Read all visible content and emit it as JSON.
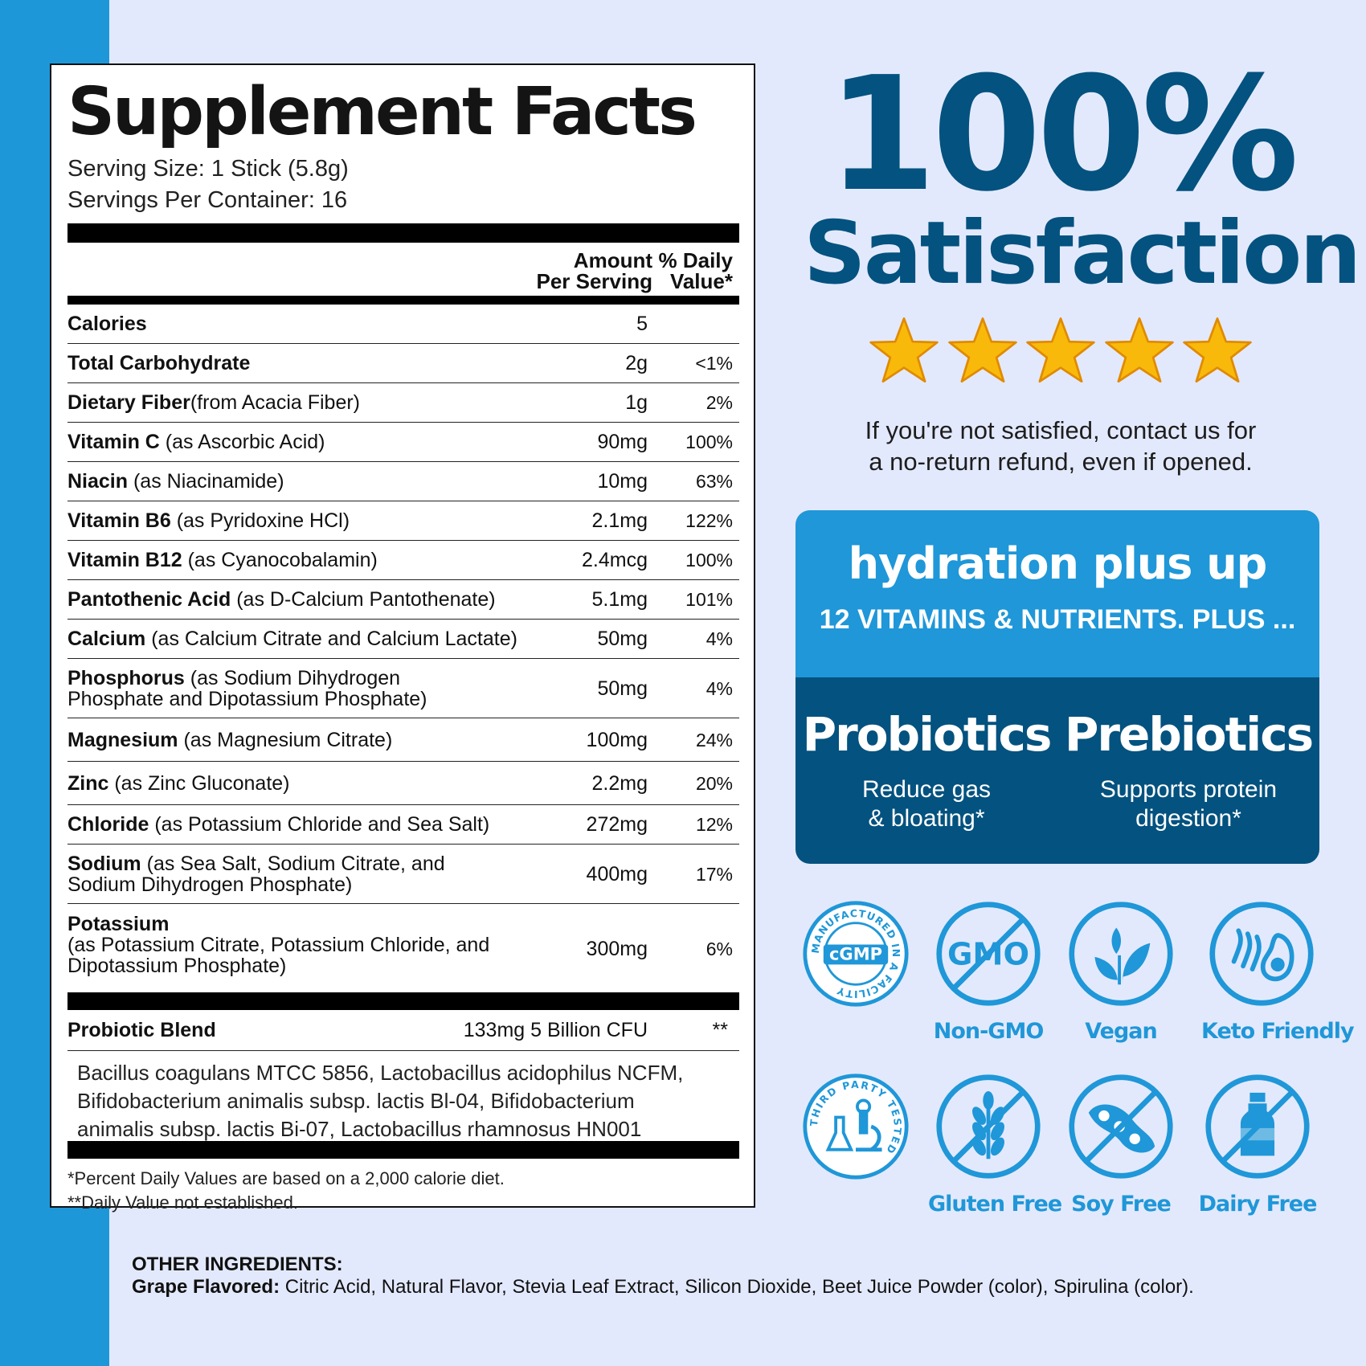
{
  "facts": {
    "title": "Supplement Facts",
    "serving_size": "Serving Size: 1 Stick (5.8g)",
    "servings_per_container": "Servings Per Container: 16",
    "col_amount_1": "Amount",
    "col_amount_2": "Per Serving",
    "col_dv_1": "% Daily",
    "col_dv_2": "Value*",
    "rows": [
      {
        "name": "Calories",
        "detail": "",
        "amount": "5",
        "dv": ""
      },
      {
        "name": "Total Carbohydrate",
        "detail": "",
        "amount": "2g",
        "dv": "<1%"
      },
      {
        "name": "Dietary Fiber",
        "detail": "(from Acacia Fiber)",
        "amount": "1g",
        "dv": "2%"
      },
      {
        "name": "Vitamin C",
        "detail": " (as Ascorbic Acid)",
        "amount": "90mg",
        "dv": "100%"
      },
      {
        "name": "Niacin",
        "detail": " (as Niacinamide)",
        "amount": "10mg",
        "dv": "63%"
      },
      {
        "name": "Vitamin B6",
        "detail": " (as Pyridoxine HCl)",
        "amount": "2.1mg",
        "dv": "122%"
      },
      {
        "name": "Vitamin B12",
        "detail": " (as Cyanocobalamin)",
        "amount": "2.4mcg",
        "dv": "100%"
      },
      {
        "name": "Pantothenic Acid",
        "detail": " (as D-Calcium Pantothenate)",
        "amount": "5.1mg",
        "dv": "101%"
      },
      {
        "name": "Calcium",
        "detail": " (as Calcium Citrate and Calcium Lactate)",
        "amount": "50mg",
        "dv": "4%"
      },
      {
        "name": "Phosphorus",
        "detail": " (as Sodium Dihydrogen",
        "detail2": "Phosphate and Dipotassium Phosphate)",
        "amount": "50mg",
        "dv": "4%"
      },
      {
        "name": "Magnesium",
        "detail": " (as Magnesium Citrate)",
        "amount": "100mg",
        "dv": "24%"
      },
      {
        "name": "Zinc",
        "detail": " (as Zinc Gluconate)",
        "amount": "2.2mg",
        "dv": "20%"
      },
      {
        "name": "Chloride",
        "detail": " (as Potassium Chloride and Sea Salt)",
        "amount": "272mg",
        "dv": "12%"
      },
      {
        "name": "Sodium",
        "detail": " (as Sea Salt, Sodium Citrate, and",
        "detail2": "Sodium Dihydrogen Phosphate)",
        "amount": "400mg",
        "dv": "17%"
      },
      {
        "name": "Potassium",
        "detail": "(as Potassium Citrate, Potassium Chloride, and",
        "detail2": "Dipotassium Phosphate)",
        "amount": "300mg",
        "dv": "6%"
      }
    ],
    "blend": {
      "name": "Probiotic Blend",
      "amount": "133mg  5 Billion CFU",
      "dv": "**"
    },
    "strains_1": "Bacillus coagulans MTCC 5856, Lactobacillus acidophilus NCFM,",
    "strains_2": "Bifidobacterium animalis subsp. lactis Bl-04, Bifidobacterium",
    "strains_3": "animalis subsp. lactis Bi-07, Lactobacillus rhamnosus HN001",
    "footnote_1": "*Percent Daily Values are based on a 2,000 calorie diet.",
    "footnote_2": "**Daily Value not established."
  },
  "promo": {
    "headline_1": "100%",
    "headline_2": "Satisfaction",
    "star_count": 5,
    "star_color": "#f8b90b",
    "guarantee_1": "If you're not satisfied, contact us for",
    "guarantee_2": "a no-return refund, even if opened."
  },
  "hydration": {
    "title": "hydration plus up",
    "subtitle": "12 VITAMINS & NUTRIENTS. PLUS ...",
    "left_title": "Probiotics",
    "left_sub_1": "Reduce gas",
    "left_sub_2": "& bloating*",
    "right_title": "Prebiotics",
    "right_sub_1": "Supports protein",
    "right_sub_2": "digestion*",
    "colors": {
      "top": "#1f97d8",
      "bottom": "#03527f"
    }
  },
  "badges": {
    "cgmp_text": "cGMP",
    "cgmp_ring": "MANUFACTURED IN A  FACILITY",
    "gmo_text": "GMO",
    "third_party_ring": "THIRD PARTY TESTED",
    "items": [
      {
        "label": "Non-GMO",
        "icon": "no-gmo-icon"
      },
      {
        "label": "Vegan",
        "icon": "leaf-icon"
      },
      {
        "label": "Keto Friendly",
        "icon": "avocado-icon"
      },
      {
        "label": "Gluten Free",
        "icon": "wheat-icon"
      },
      {
        "label": "Soy Free",
        "icon": "soybean-icon"
      },
      {
        "label": "Dairy Free",
        "icon": "milk-bottle-icon"
      }
    ],
    "color": "#1f97d8"
  },
  "ingredients": {
    "heading": "OTHER INGREDIENTS:",
    "flavor": "Grape Flavored:",
    "list": " Citric Acid, Natural Flavor, Stevia Leaf Extract, Silicon Dioxide, Beet Juice Powder (color), Spirulina (color)."
  }
}
